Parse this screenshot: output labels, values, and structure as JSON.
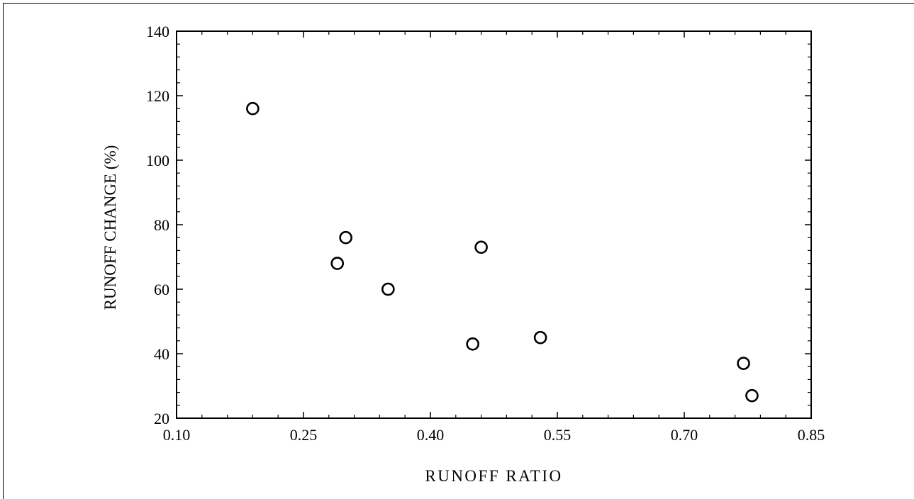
{
  "chart_data": {
    "type": "scatter",
    "xlabel": "RUNOFF RATIO",
    "ylabel": "RUNOFF CHANGE (%)",
    "xlim": [
      0.1,
      0.85
    ],
    "ylim": [
      20,
      140
    ],
    "x_ticks": [
      "0.10",
      "0.25",
      "0.40",
      "0.55",
      "0.70",
      "0.85"
    ],
    "y_ticks": [
      "20",
      "40",
      "60",
      "80",
      "100",
      "120",
      "140"
    ],
    "grid": false,
    "marker": "open-circle",
    "series": [
      {
        "points": [
          {
            "x": 0.19,
            "y": 116
          },
          {
            "x": 0.29,
            "y": 68
          },
          {
            "x": 0.3,
            "y": 76
          },
          {
            "x": 0.35,
            "y": 60
          },
          {
            "x": 0.45,
            "y": 43
          },
          {
            "x": 0.46,
            "y": 73
          },
          {
            "x": 0.53,
            "y": 45
          },
          {
            "x": 0.77,
            "y": 37
          },
          {
            "x": 0.78,
            "y": 27
          }
        ]
      }
    ]
  }
}
